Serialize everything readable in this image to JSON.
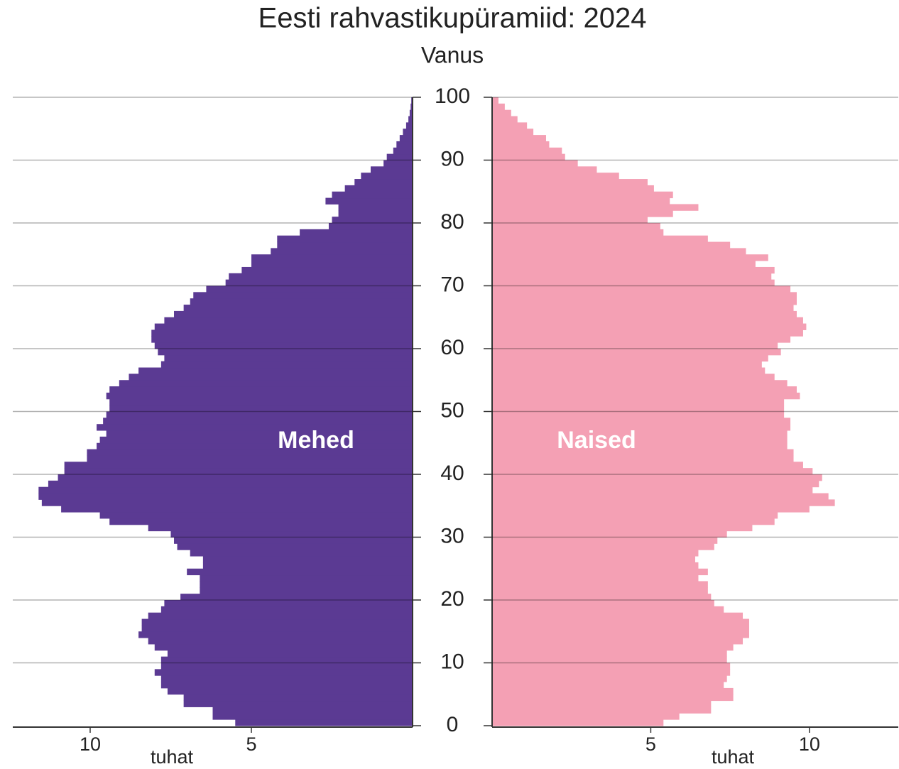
{
  "chart_data": {
    "type": "pyramid",
    "title": "Eesti rahvastikupüramiid: 2024",
    "ylabel": "Vanus",
    "xlabel": "tuhat",
    "ages": [
      0,
      1,
      2,
      3,
      4,
      5,
      6,
      7,
      8,
      9,
      10,
      11,
      12,
      13,
      14,
      15,
      16,
      17,
      18,
      19,
      20,
      21,
      22,
      23,
      24,
      25,
      26,
      27,
      28,
      29,
      30,
      31,
      32,
      33,
      34,
      35,
      36,
      37,
      38,
      39,
      40,
      41,
      42,
      43,
      44,
      45,
      46,
      47,
      48,
      49,
      50,
      51,
      52,
      53,
      54,
      55,
      56,
      57,
      58,
      59,
      60,
      61,
      62,
      63,
      64,
      65,
      66,
      67,
      68,
      69,
      70,
      71,
      72,
      73,
      74,
      75,
      76,
      77,
      78,
      79,
      80,
      81,
      82,
      83,
      84,
      85,
      86,
      87,
      88,
      89,
      90,
      91,
      92,
      93,
      94,
      95,
      96,
      97,
      98,
      99
    ],
    "ylim": [
      0,
      100
    ],
    "yticks": [
      0,
      10,
      20,
      30,
      40,
      50,
      60,
      70,
      80,
      90,
      100
    ],
    "grid": true,
    "series": [
      {
        "name": "Mehed",
        "color": "#5b3a93",
        "side": "left",
        "xlim": [
          0,
          12.4
        ],
        "xticks": [
          5,
          10
        ],
        "values": [
          5.5,
          6.2,
          6.2,
          7.1,
          7.1,
          7.6,
          7.8,
          7.8,
          8.0,
          7.8,
          7.8,
          7.6,
          8.0,
          8.2,
          8.5,
          8.4,
          8.4,
          8.2,
          7.8,
          7.7,
          7.2,
          6.6,
          6.6,
          6.6,
          7.0,
          6.5,
          6.5,
          6.9,
          7.3,
          7.4,
          7.5,
          8.2,
          9.4,
          9.7,
          10.9,
          11.5,
          11.6,
          11.6,
          11.3,
          11.0,
          10.8,
          10.8,
          10.1,
          10.1,
          9.8,
          9.7,
          9.5,
          9.8,
          9.6,
          9.5,
          9.4,
          9.4,
          9.5,
          9.4,
          9.1,
          8.8,
          8.5,
          7.8,
          7.7,
          7.9,
          8.0,
          8.1,
          8.1,
          8.0,
          7.7,
          7.4,
          7.1,
          6.9,
          6.8,
          6.4,
          5.8,
          5.7,
          5.3,
          5.0,
          5.0,
          4.4,
          4.2,
          4.2,
          3.5,
          2.6,
          2.5,
          2.3,
          2.3,
          2.7,
          2.5,
          2.1,
          1.8,
          1.6,
          1.3,
          0.9,
          0.8,
          0.6,
          0.5,
          0.4,
          0.3,
          0.2,
          0.13,
          0.09,
          0.06,
          0.04
        ]
      },
      {
        "name": "Naised",
        "color": "#f4a0b4",
        "side": "right",
        "xlim": [
          0,
          12.8
        ],
        "xticks": [
          5,
          10
        ],
        "values": [
          5.4,
          5.9,
          6.9,
          6.9,
          7.6,
          7.6,
          7.3,
          7.4,
          7.5,
          7.5,
          7.4,
          7.4,
          7.6,
          7.9,
          8.1,
          8.1,
          8.1,
          7.9,
          7.3,
          7.0,
          6.9,
          6.8,
          6.8,
          6.5,
          6.8,
          6.5,
          6.4,
          6.5,
          7.0,
          7.1,
          7.4,
          8.2,
          8.9,
          9.0,
          10.0,
          10.8,
          10.6,
          10.1,
          10.3,
          10.4,
          10.1,
          9.8,
          9.5,
          9.5,
          9.3,
          9.3,
          9.3,
          9.4,
          9.4,
          9.2,
          9.2,
          9.2,
          9.7,
          9.6,
          9.3,
          8.9,
          8.6,
          8.5,
          8.7,
          9.1,
          9.0,
          9.4,
          9.8,
          9.9,
          9.8,
          9.6,
          9.5,
          9.6,
          9.6,
          9.4,
          8.9,
          8.8,
          8.9,
          8.3,
          8.7,
          8.0,
          7.5,
          6.8,
          5.4,
          5.3,
          4.9,
          5.7,
          6.5,
          5.6,
          5.7,
          5.1,
          4.9,
          4.0,
          3.3,
          2.7,
          2.3,
          2.2,
          1.8,
          1.7,
          1.3,
          1.1,
          0.8,
          0.6,
          0.4,
          0.2
        ]
      }
    ]
  }
}
